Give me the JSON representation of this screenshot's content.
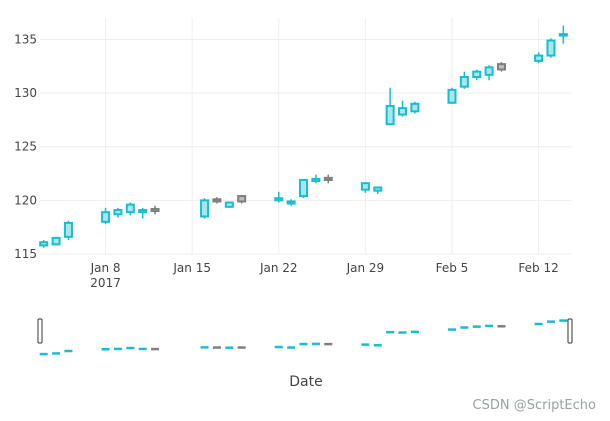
{
  "chart_data": {
    "type": "candlestick",
    "xlabel": "Date",
    "ylim": [
      115,
      137
    ],
    "yticks": [
      115,
      120,
      125,
      130,
      135
    ],
    "xticks": [
      {
        "date": "2017-01-08",
        "label": "Jan 8",
        "sublabel": "2017"
      },
      {
        "date": "2017-01-15",
        "label": "Jan 15"
      },
      {
        "date": "2017-01-22",
        "label": "Jan 22"
      },
      {
        "date": "2017-01-29",
        "label": "Jan 29"
      },
      {
        "date": "2017-02-05",
        "label": "Feb 5"
      },
      {
        "date": "2017-02-12",
        "label": "Feb 12"
      }
    ],
    "x_range": [
      "2017-01-03",
      "2017-02-15"
    ],
    "grid": true,
    "rangeslider": true,
    "colors": {
      "increasing": "#17becf",
      "decreasing": "#7f7f7f",
      "grid": "#eeeeee",
      "text": "#444444"
    },
    "candles": [
      {
        "date": "2017-01-03",
        "open": 115.8,
        "high": 116.3,
        "low": 115.6,
        "close": 116.1
      },
      {
        "date": "2017-01-04",
        "open": 115.9,
        "high": 116.6,
        "low": 115.8,
        "close": 116.5
      },
      {
        "date": "2017-01-05",
        "open": 116.6,
        "high": 118.1,
        "low": 116.3,
        "close": 117.9
      },
      {
        "date": "2017-01-08",
        "open": 118.0,
        "high": 119.3,
        "low": 117.8,
        "close": 118.9
      },
      {
        "date": "2017-01-09",
        "open": 118.7,
        "high": 119.3,
        "low": 118.4,
        "close": 119.1
      },
      {
        "date": "2017-01-10",
        "open": 118.9,
        "high": 119.8,
        "low": 118.6,
        "close": 119.6
      },
      {
        "date": "2017-01-11",
        "open": 118.9,
        "high": 119.3,
        "low": 118.3,
        "close": 119.1
      },
      {
        "date": "2017-01-12",
        "open": 119.2,
        "high": 119.5,
        "low": 118.7,
        "close": 119.0
      },
      {
        "date": "2017-01-16",
        "open": 118.5,
        "high": 120.2,
        "low": 118.3,
        "close": 120.0
      },
      {
        "date": "2017-01-17",
        "open": 120.1,
        "high": 120.3,
        "low": 119.7,
        "close": 119.9
      },
      {
        "date": "2017-01-18",
        "open": 119.4,
        "high": 119.9,
        "low": 119.3,
        "close": 119.8
      },
      {
        "date": "2017-01-19",
        "open": 120.4,
        "high": 120.5,
        "low": 119.7,
        "close": 119.9
      },
      {
        "date": "2017-01-22",
        "open": 120.0,
        "high": 120.8,
        "low": 119.8,
        "close": 120.2
      },
      {
        "date": "2017-01-23",
        "open": 119.7,
        "high": 120.1,
        "low": 119.5,
        "close": 119.9
      },
      {
        "date": "2017-01-24",
        "open": 120.4,
        "high": 122.0,
        "low": 120.2,
        "close": 121.9
      },
      {
        "date": "2017-01-25",
        "open": 121.8,
        "high": 122.4,
        "low": 121.6,
        "close": 122.0
      },
      {
        "date": "2017-01-26",
        "open": 122.1,
        "high": 122.4,
        "low": 121.6,
        "close": 121.9
      },
      {
        "date": "2017-01-29",
        "open": 121.0,
        "high": 121.7,
        "low": 120.7,
        "close": 121.6
      },
      {
        "date": "2017-01-30",
        "open": 120.9,
        "high": 121.3,
        "low": 120.6,
        "close": 121.2
      },
      {
        "date": "2017-01-31",
        "open": 127.1,
        "high": 130.5,
        "low": 127.0,
        "close": 128.8
      },
      {
        "date": "2017-02-01",
        "open": 128.0,
        "high": 129.3,
        "low": 127.8,
        "close": 128.6
      },
      {
        "date": "2017-02-02",
        "open": 128.3,
        "high": 129.2,
        "low": 128.1,
        "close": 129.0
      },
      {
        "date": "2017-02-05",
        "open": 129.1,
        "high": 130.5,
        "low": 129.0,
        "close": 130.3
      },
      {
        "date": "2017-02-06",
        "open": 130.6,
        "high": 132.0,
        "low": 130.4,
        "close": 131.5
      },
      {
        "date": "2017-02-07",
        "open": 131.5,
        "high": 132.2,
        "low": 131.2,
        "close": 132.0
      },
      {
        "date": "2017-02-08",
        "open": 131.7,
        "high": 132.6,
        "low": 131.2,
        "close": 132.4
      },
      {
        "date": "2017-02-09",
        "open": 132.7,
        "high": 132.9,
        "low": 132.0,
        "close": 132.2
      },
      {
        "date": "2017-02-12",
        "open": 133.0,
        "high": 133.8,
        "low": 132.8,
        "close": 133.5
      },
      {
        "date": "2017-02-13",
        "open": 133.5,
        "high": 135.1,
        "low": 133.3,
        "close": 134.9
      },
      {
        "date": "2017-02-14",
        "open": 135.4,
        "high": 136.3,
        "low": 134.6,
        "close": 135.5
      }
    ]
  },
  "watermark": "CSDN @ScriptEcho"
}
